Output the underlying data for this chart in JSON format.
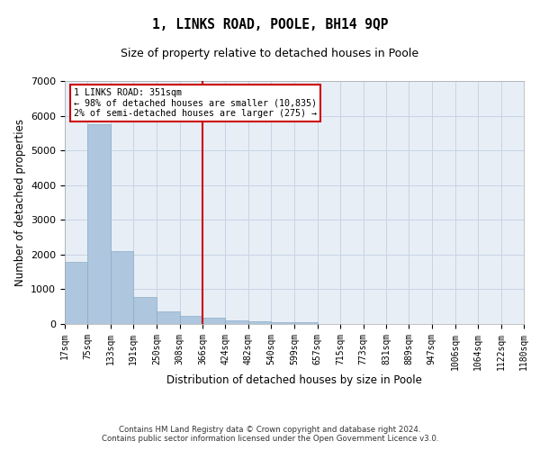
{
  "title": "1, LINKS ROAD, POOLE, BH14 9QP",
  "subtitle": "Size of property relative to detached houses in Poole",
  "xlabel": "Distribution of detached houses by size in Poole",
  "ylabel": "Number of detached properties",
  "bar_color": "#aec6de",
  "bar_edge_color": "#8aaec8",
  "grid_color": "#c8d4e4",
  "background_color": "#e8eef6",
  "vline_x": 366,
  "vline_color": "#cc0000",
  "legend_box_color": "#cc0000",
  "legend_text": [
    "1 LINKS ROAD: 351sqm",
    "← 98% of detached houses are smaller (10,835)",
    "2% of semi-detached houses are larger (275) →"
  ],
  "bin_edges": [
    17,
    75,
    133,
    191,
    250,
    308,
    366,
    424,
    482,
    540,
    599,
    657,
    715,
    773,
    831,
    889,
    947,
    1006,
    1064,
    1122,
    1180
  ],
  "bin_values": [
    1800,
    5750,
    2100,
    780,
    360,
    240,
    170,
    110,
    90,
    45,
    40,
    0,
    0,
    0,
    0,
    0,
    0,
    0,
    0,
    0
  ],
  "ylim": [
    0,
    7000
  ],
  "yticks": [
    0,
    1000,
    2000,
    3000,
    4000,
    5000,
    6000,
    7000
  ],
  "footnote": "Contains HM Land Registry data © Crown copyright and database right 2024.\nContains public sector information licensed under the Open Government Licence v3.0."
}
